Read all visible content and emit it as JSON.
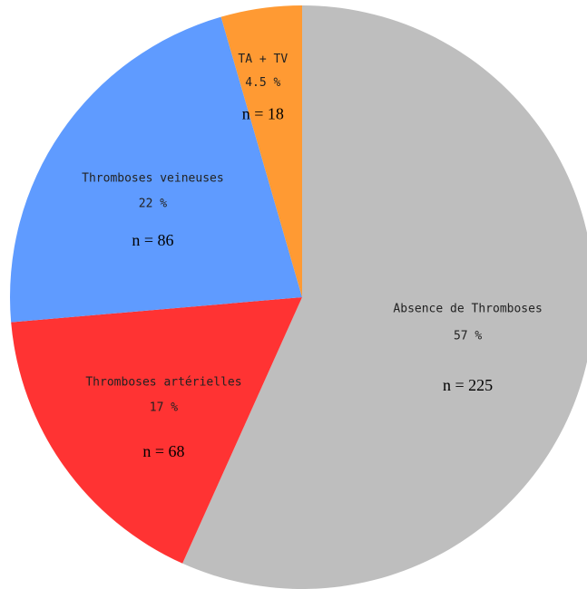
{
  "chart_data": {
    "type": "pie",
    "categories": [
      "Absence de Thromboses",
      "Thromboses artérielles",
      "Thromboses veineuses",
      "TA + TV"
    ],
    "values": [
      57,
      17,
      22,
      4.5
    ],
    "value_labels": [
      "57 %",
      "17 %",
      "22 %",
      "4.5 %"
    ],
    "count_labels": [
      "n = 225",
      "n = 68",
      "n = 86",
      "n = 18"
    ],
    "colors": [
      "#bebebe",
      "#ff3333",
      "#5f9bff",
      "#ff9a33"
    ]
  }
}
